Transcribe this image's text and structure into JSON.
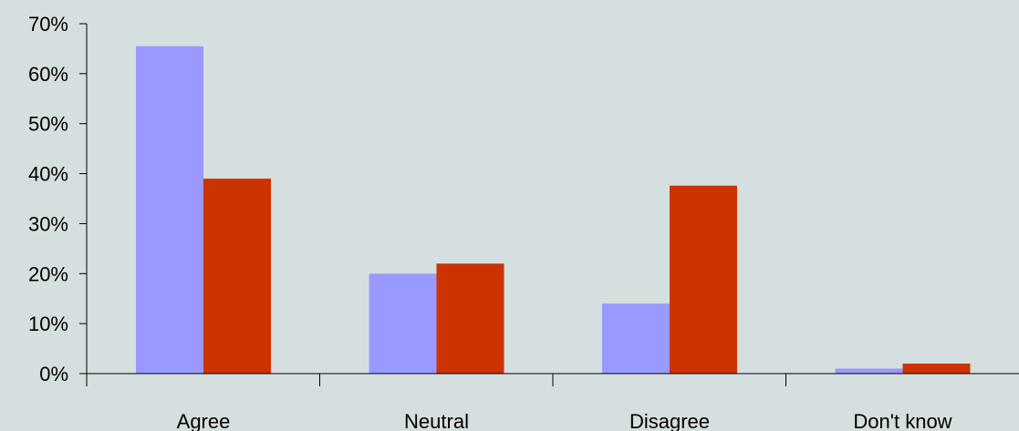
{
  "chart_data": {
    "type": "bar",
    "categories": [
      "Agree",
      "Neutral",
      "Disagree",
      "Don't know"
    ],
    "series": [
      {
        "values": [
          65.5,
          20,
          14,
          1
        ],
        "color": "#9999ff"
      },
      {
        "values": [
          39,
          22,
          37.6,
          2
        ],
        "color": "#cc3300"
      }
    ],
    "ylim": [
      0,
      70
    ],
    "yticks": [
      0,
      10,
      20,
      30,
      40,
      50,
      60,
      70
    ],
    "ytick_labels": [
      "0%",
      "10%",
      "20%",
      "30%",
      "40%",
      "50%",
      "60%",
      "70%"
    ],
    "grid": false,
    "title": "",
    "xlabel": "",
    "ylabel": ""
  },
  "background": "#d6dfdf"
}
